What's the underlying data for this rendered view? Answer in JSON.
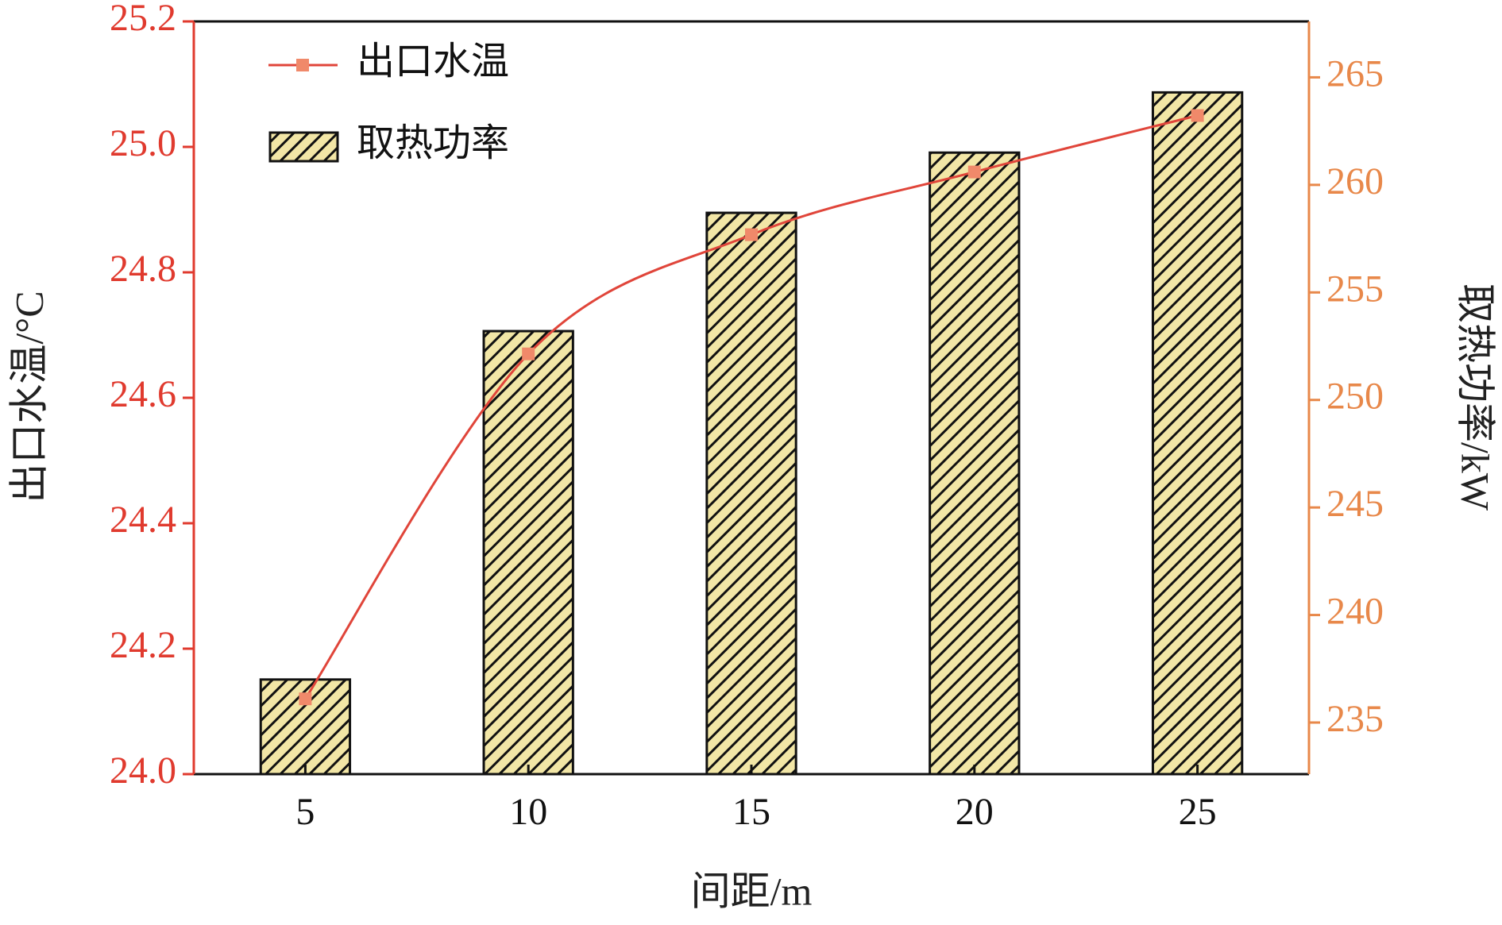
{
  "chart_data": {
    "type": "combo",
    "x_label": "间距/m",
    "y_label": "出口水温/°C",
    "y2_label": "取热功率/kW",
    "categories": [
      "5",
      "10",
      "15",
      "20",
      "25"
    ],
    "series": [
      {
        "name": "出口水温",
        "type": "line",
        "color": "#e0453a",
        "marker_color": "#f0896a",
        "values": [
          24.12,
          24.67,
          24.86,
          24.96,
          25.05
        ]
      },
      {
        "name": "取热功率",
        "type": "bar",
        "axis": "y2",
        "color": "#f2e6a6",
        "hatch": true,
        "values": [
          237.0,
          253.2,
          258.7,
          261.5,
          264.3
        ]
      }
    ],
    "ylim": [
      24,
      25.2
    ],
    "yticks": [
      {
        "value": 24,
        "label": "24.0"
      },
      24.2,
      24.4,
      24.6,
      24.8,
      {
        "value": 25,
        "label": "25.0"
      },
      25.2
    ],
    "y2lim": [
      232.6,
      267.6
    ],
    "y2ticks": [
      235,
      240,
      245,
      250,
      255,
      260,
      265
    ],
    "y_color": "#e03a2e",
    "y2_color": "#e8884a",
    "legend": "upper-left"
  }
}
